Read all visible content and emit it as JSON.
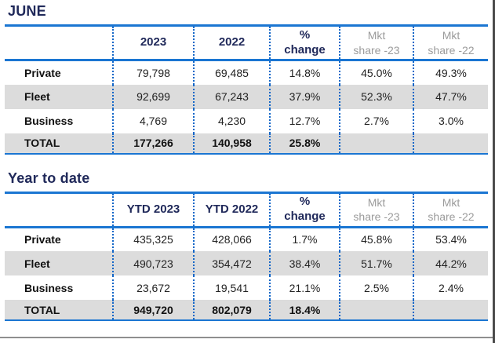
{
  "colors": {
    "title_navy": "#20295a",
    "line_blue": "#1b76d2",
    "dot_blue": "#1467c8",
    "header_gray_text": "#9b9b9b",
    "row_shade": "#dcdcdc",
    "bottom_rule_gray": "#8f8f8f",
    "right_edge_dark": "#4a4a4a"
  },
  "june": {
    "title": "JUNE",
    "headers": {
      "year1": "2023",
      "year2": "2022",
      "change_line1": "%",
      "change_line2": "change",
      "mkt23_line1": "Mkt",
      "mkt23_line2": "share -23",
      "mkt22_line1": "Mkt",
      "mkt22_line2": "share -22"
    },
    "rows": [
      {
        "label": "Private",
        "y1": "79,798",
        "y2": "69,485",
        "chg": "14.8%",
        "s23": "45.0%",
        "s22": "49.3%"
      },
      {
        "label": "Fleet",
        "y1": "92,699",
        "y2": "67,243",
        "chg": "37.9%",
        "s23": "52.3%",
        "s22": "47.7%"
      },
      {
        "label": "Business",
        "y1": "4,769",
        "y2": "4,230",
        "chg": "12.7%",
        "s23": "2.7%",
        "s22": "3.0%"
      },
      {
        "label": "TOTAL",
        "y1": "177,266",
        "y2": "140,958",
        "chg": "25.8%",
        "s23": "",
        "s22": ""
      }
    ]
  },
  "ytd": {
    "title": "Year to date",
    "headers": {
      "year1": "YTD 2023",
      "year2": "YTD 2022",
      "change_line1": "%",
      "change_line2": "change",
      "mkt23_line1": "Mkt",
      "mkt23_line2": "share -23",
      "mkt22_line1": "Mkt",
      "mkt22_line2": "share -22"
    },
    "rows": [
      {
        "label": "Private",
        "y1": "435,325",
        "y2": "428,066",
        "chg": "1.7%",
        "s23": "45.8%",
        "s22": "53.4%"
      },
      {
        "label": "Fleet",
        "y1": "490,723",
        "y2": "354,472",
        "chg": "38.4%",
        "s23": "51.7%",
        "s22": "44.2%"
      },
      {
        "label": "Business",
        "y1": "23,672",
        "y2": "19,541",
        "chg": "21.1%",
        "s23": "2.5%",
        "s22": "2.4%"
      },
      {
        "label": "TOTAL",
        "y1": "949,720",
        "y2": "802,079",
        "chg": "18.4%",
        "s23": "",
        "s22": ""
      }
    ]
  }
}
